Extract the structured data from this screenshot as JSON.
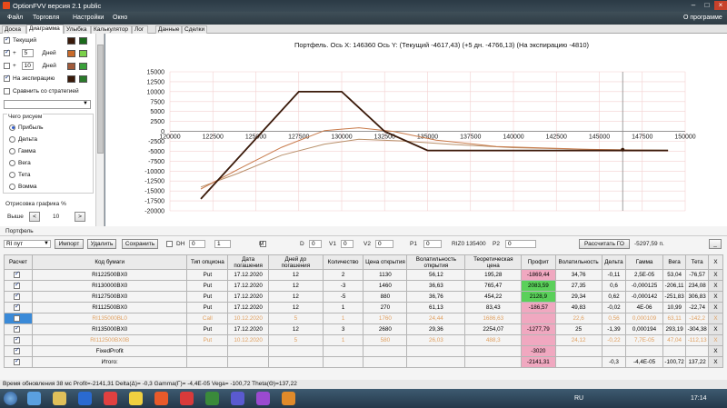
{
  "window": {
    "title": "OptionFVV версия 2.1 public"
  },
  "menu": {
    "items": [
      "Файл",
      "Торговля",
      "Настройки",
      "Окно"
    ],
    "about": "О программе"
  },
  "tabs": [
    "Доска",
    "Диаграмма",
    "Улыбка",
    "Калькулятор",
    "Лог",
    "Данные",
    "Сделки"
  ],
  "left": {
    "current": "Текущий",
    "plus": "+",
    "days_label": "Дней",
    "days1": "5",
    "days2": "10",
    "expiry": "На экспирацию",
    "compare": "Сравнить со стратегией",
    "what_title": "Чего рисуем",
    "options": [
      "Прибыль",
      "Дельта",
      "Гамма",
      "Вега",
      "Тета",
      "Вомма"
    ],
    "render_title": "Отрисовка графика %",
    "above": "Выше",
    "above_val": "10",
    "colors": [
      "#3a1a0a",
      "#1a6a1a",
      "#c86a2a",
      "#7ad04a",
      "#a05a3a",
      "#3aa03a",
      "#3a1a0a",
      "#2a7a2a"
    ]
  },
  "chart_data": {
    "type": "line",
    "title": "Портфель. Ось X: 146360 Ось Y: (Текущий -4617,43) (+5 дн. -4766,13) (На экспирацию -4810)",
    "xlim": [
      120000,
      150000
    ],
    "ylim": [
      -20000,
      15000
    ],
    "x_ticks": [
      "120000",
      "122500",
      "125000",
      "127500",
      "130000",
      "132500",
      "135000",
      "137500",
      "140000",
      "142500",
      "145000",
      "147500",
      "150000"
    ],
    "y_ticks": [
      "15000",
      "12500",
      "10000",
      "7500",
      "5000",
      "2500",
      "0",
      "-2500",
      "-5000",
      "-7500",
      "-10000",
      "-12500",
      "-15000",
      "-17500",
      "-20000"
    ],
    "series": [
      {
        "color": "#3a1a0a",
        "points": [
          [
            121800,
            -17000
          ],
          [
            127500,
            10000
          ],
          [
            130000,
            10000
          ],
          [
            132500,
            0
          ],
          [
            135000,
            -4800
          ],
          [
            149000,
            -4810
          ]
        ]
      },
      {
        "color": "#c87a4a",
        "points": [
          [
            121800,
            -14500
          ],
          [
            124000,
            -9500
          ],
          [
            126500,
            -4000
          ],
          [
            129000,
            200
          ],
          [
            131000,
            900
          ],
          [
            133000,
            0
          ],
          [
            135500,
            -2200
          ],
          [
            139000,
            -3800
          ],
          [
            144000,
            -4500
          ],
          [
            149000,
            -4800
          ]
        ]
      },
      {
        "color": "#b8906a",
        "points": [
          [
            121800,
            -14000
          ],
          [
            124000,
            -10500
          ],
          [
            126500,
            -6000
          ],
          [
            129000,
            -3200
          ],
          [
            131000,
            -2000
          ],
          [
            133500,
            -2400
          ],
          [
            136500,
            -3300
          ],
          [
            140000,
            -4100
          ],
          [
            145000,
            -4600
          ],
          [
            149000,
            -4750
          ]
        ]
      }
    ],
    "cursor_x": 146360,
    "marker": [
      146360,
      -4617
    ],
    "grid": true
  },
  "portfolio": {
    "title": "Портфель",
    "account": "RI пут",
    "import": "Импорт",
    "delete": "Удалить",
    "save": "Сохранить",
    "dh": "DH",
    "dh_val1": "0",
    "dh_val2": "1",
    "m": "M",
    "d": "D",
    "d_val": "0",
    "v1": "V1",
    "v1_val": "0",
    "v2": "V2",
    "v2_val": "0",
    "p1": "P1",
    "p1_val": "0",
    "rizd": "RIZ0 135400",
    "p2": "P2",
    "p2_val": "0",
    "calc_go": "Рассчитать ГО",
    "go_value": "-5297,59 п.",
    "minus": "_"
  },
  "table": {
    "headers": [
      "Расчет",
      "Код бумаги",
      "Тип опциона",
      "Дата погашения",
      "Дней до погашения",
      "Количество",
      "Цена открытия",
      "Волатильность открытия",
      "Теоретическая цена",
      "Профит",
      "Волатильность",
      "Дельта",
      "Гамма",
      "Вега",
      "Тета",
      "X"
    ],
    "rows": [
      {
        "on": true,
        "dis": false,
        "code": "RI122500BX0",
        "type": "Put",
        "date": "17.12.2020",
        "days": "12",
        "qty": "2",
        "price": "1130",
        "vol_open": "56,12",
        "theor": "195,28",
        "profit": "-1869,44",
        "pc": "neg",
        "vol": "34,76",
        "delta": "-0,11",
        "gamma": "2,5E-05",
        "vega": "53,04",
        "theta": "-76,57"
      },
      {
        "on": true,
        "dis": false,
        "code": "RI130000BX0",
        "type": "Put",
        "date": "17.12.2020",
        "days": "12",
        "qty": "-3",
        "price": "1460",
        "vol_open": "36,63",
        "theor": "765,47",
        "profit": "2083,59",
        "pc": "pos",
        "vol": "27,35",
        "delta": "0,6",
        "gamma": "-0,000125",
        "vega": "-206,11",
        "theta": "234,08"
      },
      {
        "on": true,
        "dis": false,
        "code": "RI127500BX0",
        "type": "Put",
        "date": "17.12.2020",
        "days": "12",
        "qty": "-5",
        "price": "880",
        "vol_open": "36,76",
        "theor": "454,22",
        "profit": "2128,9",
        "pc": "pos",
        "vol": "29,34",
        "delta": "0,62",
        "gamma": "-0,000142",
        "vega": "-251,83",
        "theta": "306,83"
      },
      {
        "on": true,
        "dis": false,
        "code": "RI112500BX0",
        "type": "Put",
        "date": "17.12.2020",
        "days": "12",
        "qty": "1",
        "price": "270",
        "vol_open": "61,13",
        "theor": "83,43",
        "profit": "-186,57",
        "pc": "neg",
        "vol": "49,83",
        "delta": "-0,02",
        "gamma": "4E-06",
        "vega": "10,99",
        "theta": "-22,74"
      },
      {
        "on": false,
        "dis": true,
        "code": "RI135000BL0",
        "type": "Call",
        "date": "10.12.2020",
        "days": "5",
        "qty": "1",
        "price": "1760",
        "vol_open": "24,44",
        "theor": "1686,63",
        "profit": "",
        "pc": "neg",
        "vol": "22,6",
        "delta": "0,56",
        "gamma": "0,000109",
        "vega": "63,11",
        "theta": "-142,2"
      },
      {
        "on": true,
        "dis": false,
        "code": "RI135000BX0",
        "type": "Put",
        "date": "17.12.2020",
        "days": "12",
        "qty": "3",
        "price": "2680",
        "vol_open": "29,36",
        "theor": "2254,07",
        "profit": "-1277,79",
        "pc": "neg",
        "vol": "25",
        "delta": "-1,39",
        "gamma": "0,000194",
        "vega": "293,19",
        "theta": "-304,38"
      },
      {
        "on": true,
        "dis": true,
        "code": "RI112500BX0B",
        "type": "Put",
        "date": "10.12.2020",
        "days": "5",
        "qty": "1",
        "price": "580",
        "vol_open": "26,03",
        "theor": "488,3",
        "profit": "",
        "pc": "neg",
        "vol": "24,12",
        "delta": "-0,22",
        "gamma": "7,7E-05",
        "vega": "47,04",
        "theta": "-112,13"
      },
      {
        "on": true,
        "dis": false,
        "code": "FixedProfit",
        "type": "",
        "date": "",
        "days": "",
        "qty": "",
        "price": "",
        "vol_open": "",
        "theor": "",
        "profit": "-3020",
        "pc": "neg",
        "vol": "",
        "delta": "",
        "gamma": "",
        "vega": "",
        "theta": ""
      },
      {
        "on": true,
        "dis": false,
        "code": "Итого:",
        "type": "",
        "date": "",
        "days": "",
        "qty": "",
        "price": "",
        "vol_open": "",
        "theor": "",
        "profit": "-2141,31",
        "pc": "neg",
        "vol": "",
        "delta": "-0,3",
        "gamma": "-4,4E-05",
        "vega": "-100,72",
        "theta": "137,22"
      }
    ]
  },
  "status": "Время обновления 38 мс  Profit=-2141,31 Delta(Δ)= -0,3 Gamma(Γ)= -4,4E-05 Vega= -100,72 Theta(Θ)=137,22",
  "taskbar": {
    "lang": "RU",
    "time": "17:14"
  }
}
